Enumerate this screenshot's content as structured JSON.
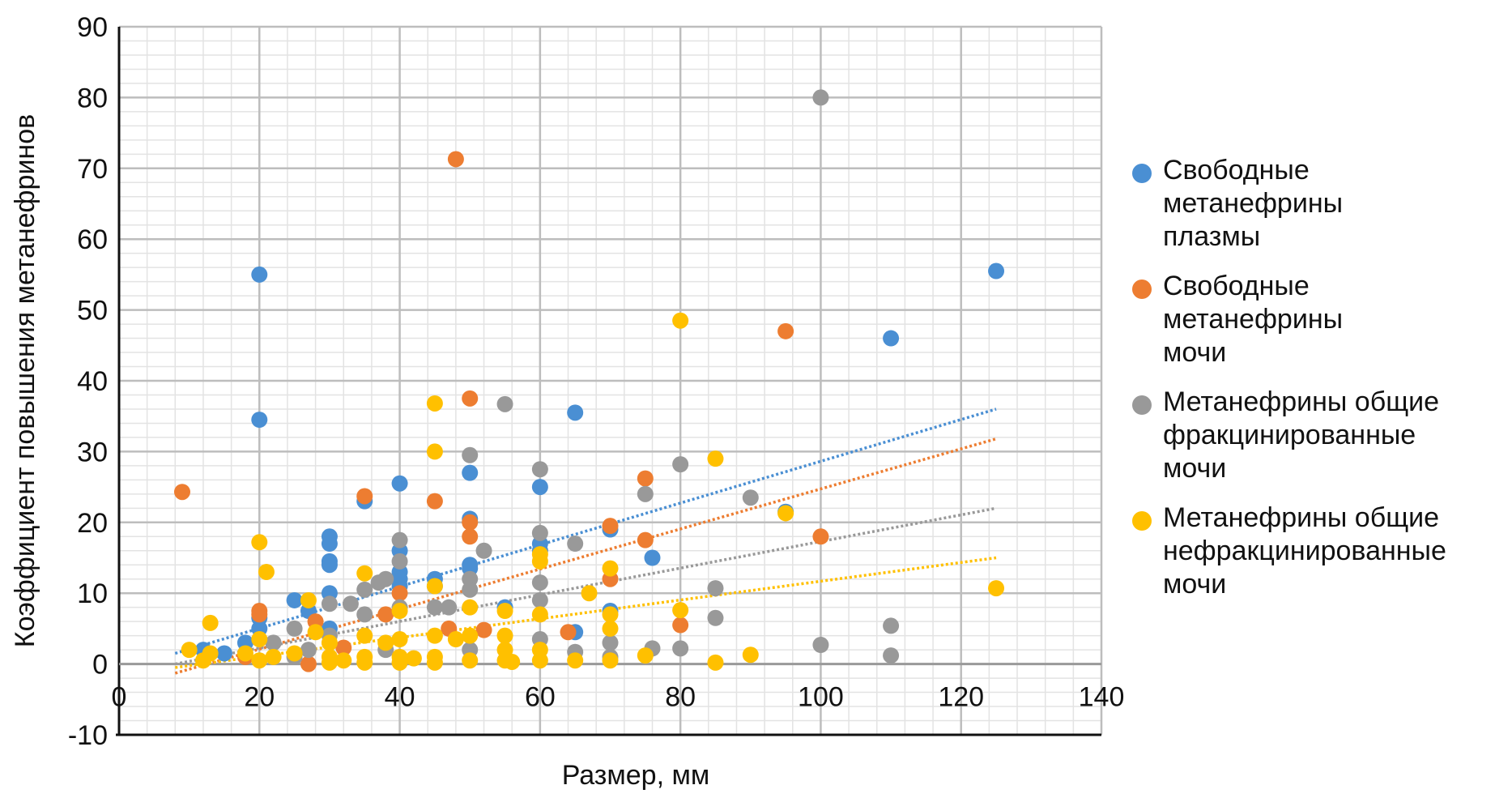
{
  "chart_data": {
    "type": "scatter",
    "title": "",
    "xlabel": "Размер, мм",
    "ylabel": "Коэффициент повышения метанефринов",
    "xlim": [
      0,
      140
    ],
    "ylim": [
      -10,
      90
    ],
    "xticks": [
      "0",
      "20",
      "40",
      "60",
      "80",
      "100",
      "120",
      "140"
    ],
    "yticks": [
      "-10",
      "0",
      "10",
      "20",
      "30",
      "40",
      "50",
      "60",
      "70",
      "80",
      "90"
    ],
    "grid": true,
    "legend_position": "right",
    "series": [
      {
        "name": "Свободные метанефрины плазмы",
        "legend_lines": [
          "Свободные",
          "метанефрины",
          "плазмы"
        ],
        "color": "#4a8fd3",
        "points": [
          [
            12,
            2
          ],
          [
            15,
            1.5
          ],
          [
            18,
            3
          ],
          [
            20,
            55
          ],
          [
            20,
            34.5
          ],
          [
            20,
            6.5
          ],
          [
            20,
            5
          ],
          [
            25,
            9
          ],
          [
            27,
            7.5
          ],
          [
            30,
            18
          ],
          [
            30,
            17
          ],
          [
            30,
            14.5
          ],
          [
            30,
            14
          ],
          [
            30,
            10
          ],
          [
            30,
            5
          ],
          [
            35,
            23
          ],
          [
            40,
            25.5
          ],
          [
            40,
            16
          ],
          [
            40,
            13
          ],
          [
            40,
            12
          ],
          [
            40,
            11
          ],
          [
            45,
            12
          ],
          [
            45,
            11
          ],
          [
            50,
            27
          ],
          [
            50,
            20.5
          ],
          [
            50,
            14
          ],
          [
            50,
            13.5
          ],
          [
            55,
            8
          ],
          [
            60,
            25
          ],
          [
            60,
            17
          ],
          [
            60,
            16
          ],
          [
            65,
            35.5
          ],
          [
            65,
            4.5
          ],
          [
            70,
            19
          ],
          [
            70,
            7.5
          ],
          [
            76,
            15
          ],
          [
            95,
            21.5
          ],
          [
            110,
            46
          ],
          [
            125,
            55.5
          ]
        ],
        "trend": [
          [
            8,
            1.5
          ],
          [
            125,
            36
          ]
        ]
      },
      {
        "name": "Свободные метанефрины мочи",
        "legend_lines": [
          "Свободные",
          "метанефрины",
          "мочи"
        ],
        "color": "#ed7d31",
        "points": [
          [
            9,
            24.3
          ],
          [
            18,
            1
          ],
          [
            20,
            7.5
          ],
          [
            20,
            7
          ],
          [
            27,
            0
          ],
          [
            28,
            6
          ],
          [
            32,
            2.3
          ],
          [
            35,
            23.7
          ],
          [
            38,
            7
          ],
          [
            40,
            10
          ],
          [
            45,
            23
          ],
          [
            47,
            5
          ],
          [
            48,
            71.3
          ],
          [
            50,
            37.5
          ],
          [
            50,
            20
          ],
          [
            50,
            18
          ],
          [
            52,
            4.8
          ],
          [
            64,
            4.5
          ],
          [
            70,
            19.5
          ],
          [
            70,
            12
          ],
          [
            75,
            26.2
          ],
          [
            75,
            17.5
          ],
          [
            80,
            5.5
          ],
          [
            95,
            47
          ],
          [
            100,
            18
          ]
        ],
        "trend": [
          [
            8,
            -1.3
          ],
          [
            125,
            31.8
          ]
        ]
      },
      {
        "name": "Метанефрины общие фракцинированные мочи",
        "legend_lines": [
          "Метанефрины общие",
          "фракцинированные",
          "мочи"
        ],
        "color": "#999999",
        "points": [
          [
            22,
            3
          ],
          [
            25,
            5
          ],
          [
            25,
            1
          ],
          [
            27,
            2
          ],
          [
            30,
            8.5
          ],
          [
            30,
            4
          ],
          [
            33,
            8.5
          ],
          [
            35,
            10.5
          ],
          [
            35,
            7
          ],
          [
            37,
            11.5
          ],
          [
            38,
            12
          ],
          [
            38,
            2
          ],
          [
            40,
            17.5
          ],
          [
            40,
            14.5
          ],
          [
            40,
            8
          ],
          [
            45,
            8
          ],
          [
            47,
            8
          ],
          [
            50,
            29.5
          ],
          [
            50,
            12
          ],
          [
            50,
            10.5
          ],
          [
            50,
            2
          ],
          [
            52,
            16
          ],
          [
            55,
            36.7
          ],
          [
            60,
            27.5
          ],
          [
            60,
            18.5
          ],
          [
            60,
            11.5
          ],
          [
            60,
            9
          ],
          [
            60,
            3.5
          ],
          [
            65,
            17
          ],
          [
            65,
            1.7
          ],
          [
            70,
            3
          ],
          [
            70,
            1
          ],
          [
            75,
            24
          ],
          [
            76,
            2.2
          ],
          [
            80,
            28.2
          ],
          [
            80,
            2.2
          ],
          [
            85,
            10.7
          ],
          [
            85,
            6.5
          ],
          [
            90,
            23.5
          ],
          [
            100,
            80
          ],
          [
            100,
            2.7
          ],
          [
            110,
            5.4
          ],
          [
            110,
            1.2
          ]
        ],
        "trend": [
          [
            8,
            0
          ],
          [
            125,
            22
          ]
        ]
      },
      {
        "name": "Метанефрины общие нефракцинированные мочи",
        "legend_lines": [
          "Метанефрины общие",
          "нефракцинированные",
          "мочи"
        ],
        "color": "#ffc000",
        "points": [
          [
            10,
            2
          ],
          [
            12,
            0.5
          ],
          [
            13,
            1.5
          ],
          [
            13,
            5.8
          ],
          [
            18,
            1.5
          ],
          [
            20,
            17.2
          ],
          [
            20,
            3.5
          ],
          [
            20,
            0.5
          ],
          [
            21,
            13
          ],
          [
            22,
            1
          ],
          [
            25,
            1.5
          ],
          [
            27,
            9
          ],
          [
            28,
            4.5
          ],
          [
            30,
            3
          ],
          [
            30,
            1
          ],
          [
            30,
            0.2
          ],
          [
            32,
            0.5
          ],
          [
            35,
            12.8
          ],
          [
            35,
            4
          ],
          [
            35,
            1
          ],
          [
            35,
            0.2
          ],
          [
            38,
            3
          ],
          [
            40,
            7.5
          ],
          [
            40,
            3.5
          ],
          [
            40,
            1
          ],
          [
            40,
            0.2
          ],
          [
            42,
            0.8
          ],
          [
            45,
            36.8
          ],
          [
            45,
            30
          ],
          [
            45,
            11
          ],
          [
            45,
            4
          ],
          [
            45,
            1
          ],
          [
            45,
            0.2
          ],
          [
            48,
            3.5
          ],
          [
            50,
            8
          ],
          [
            50,
            4
          ],
          [
            50,
            0.5
          ],
          [
            55,
            7.5
          ],
          [
            55,
            4
          ],
          [
            55,
            2
          ],
          [
            55,
            0.5
          ],
          [
            56,
            0.3
          ],
          [
            60,
            15.5
          ],
          [
            60,
            14.5
          ],
          [
            60,
            7
          ],
          [
            60,
            2
          ],
          [
            60,
            0.5
          ],
          [
            65,
            0.5
          ],
          [
            67,
            10
          ],
          [
            70,
            13.5
          ],
          [
            70,
            7
          ],
          [
            70,
            5
          ],
          [
            70,
            0.5
          ],
          [
            75,
            1.2
          ],
          [
            80,
            48.5
          ],
          [
            80,
            7.6
          ],
          [
            85,
            29
          ],
          [
            85,
            0.2
          ],
          [
            90,
            1.3
          ],
          [
            95,
            21.3
          ],
          [
            125,
            10.7
          ]
        ],
        "trend": [
          [
            8,
            -0.5
          ],
          [
            125,
            15
          ]
        ]
      }
    ]
  }
}
